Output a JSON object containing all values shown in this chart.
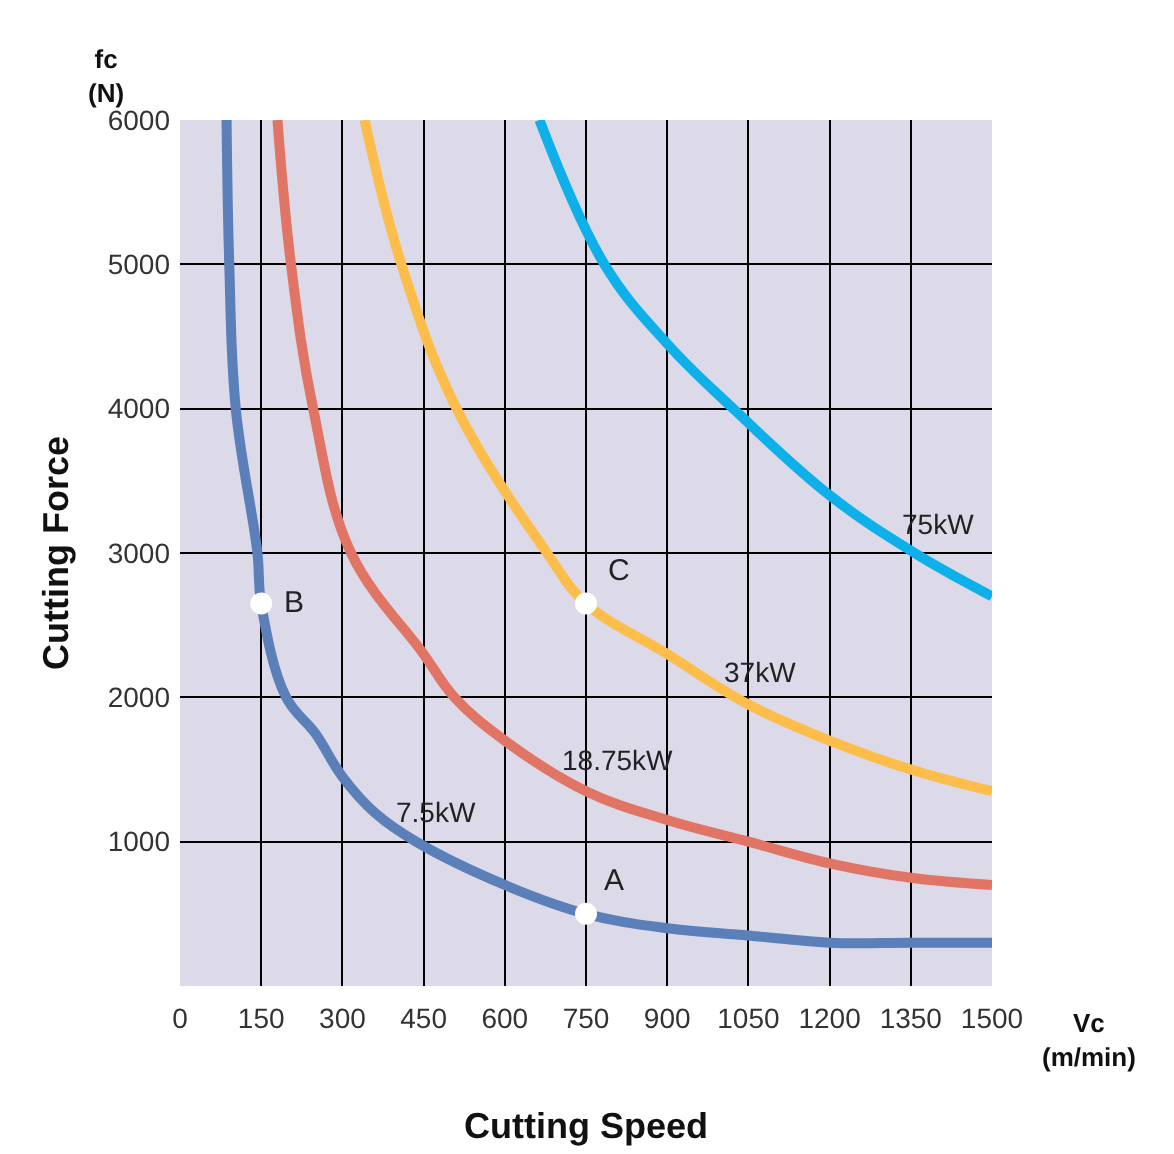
{
  "chart_data": {
    "type": "line",
    "xlabel": "Cutting Speed",
    "ylabel": "Cutting Force",
    "xlim": [
      0,
      1500
    ],
    "xticks": [
      0,
      150,
      300,
      450,
      600,
      750,
      900,
      1050,
      1200,
      1350,
      1500
    ],
    "ylim": [
      0,
      6000
    ],
    "yticks": [
      1000,
      2000,
      3000,
      4000,
      5000,
      6000
    ],
    "grid": true,
    "legend": false,
    "marker": "none",
    "line_style": "solid",
    "series": [
      {
        "name": "7.5kW",
        "color": "#5b7fb8",
        "x": [
          86,
          91,
          103,
          143,
          150,
          196,
          250,
          300,
          360,
          436,
          600,
          750,
          900,
          1050,
          1200,
          1350,
          1500
        ],
        "values": [
          6000,
          5000,
          4000,
          3000,
          2650,
          2000,
          1750,
          1450,
          1200,
          1000,
          700,
          500,
          400,
          350,
          300,
          300,
          300
        ]
      },
      {
        "name": "18.75kW",
        "color": "#e07565",
        "x": [
          180,
          205,
          246,
          316,
          450,
          507,
          600,
          750,
          900,
          1050,
          1200,
          1350,
          1500
        ],
        "values": [
          6000,
          5000,
          4000,
          3000,
          2300,
          2000,
          1700,
          1350,
          1150,
          1000,
          850,
          750,
          700
        ]
      },
      {
        "name": "37kW",
        "color": "#fdbd4a",
        "x": [
          341,
          409,
          511,
          678,
          750,
          900,
          1050,
          1200,
          1350,
          1500
        ],
        "values": [
          6000,
          5000,
          4000,
          3000,
          2650,
          2300,
          1950,
          1700,
          1500,
          1350
        ]
      },
      {
        "name": "75kW",
        "color": "#0db0e8",
        "x": [
          664,
          784,
          900,
          1022,
          1200,
          1357,
          1500
        ],
        "values": [
          6000,
          5000,
          4450,
          4000,
          3400,
          3000,
          2700
        ]
      },
      {
        "type": "scatter",
        "color": "#ffffff",
        "marker": "circle",
        "x": [
          750,
          150,
          750
        ],
        "values": [
          500,
          2650,
          2650
        ]
      }
    ],
    "annotations": [
      "A",
      "B",
      "C",
      "fc\n(N)",
      "Vc\n(m/min)"
    ]
  }
}
